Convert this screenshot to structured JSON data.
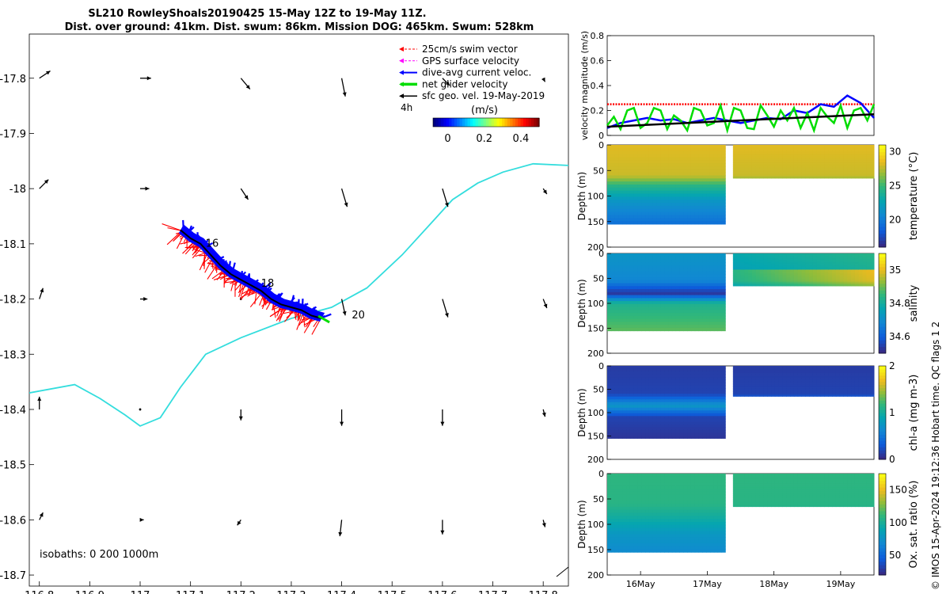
{
  "title": {
    "line1": "SL210 RowleyShoals20190425 15-May 12Z to 19-May 11Z.",
    "line2": "Dist. over ground: 41km. Dist. swum: 86km. Mission DOG: 465km. Swum: 528km"
  },
  "side_note": "© IMOS 15-Apr-2024 19:12:36 Hobart time. QC flags 1  2",
  "colors": {
    "swim": "#ff0000",
    "gps": "#ff00ff",
    "dac": "#0000ff",
    "net": "#00dd00",
    "sfc": "#000000",
    "isobath": "#33dddd",
    "track_fill_blue": "#0000ff",
    "track_fill_red": "#ff0000"
  },
  "chart_data": [
    {
      "id": "map",
      "type": "scatter",
      "title": "glider track map with surface geostrophic velocity",
      "xlim": [
        116.78,
        117.85
      ],
      "ylim": [
        -18.72,
        -17.72
      ],
      "xticks": [
        116.8,
        116.9,
        117,
        117.1,
        117.2,
        117.3,
        117.4,
        117.5,
        117.6,
        117.7,
        117.8
      ],
      "xtick_labels": [
        "116.8",
        "116.9",
        "117",
        "117.1",
        "117.2",
        "117.3",
        "117.4",
        "117.5",
        "117.6",
        "117.7",
        "117.8"
      ],
      "yticks": [
        -17.8,
        -17.9,
        -18.0,
        -18.1,
        -18.2,
        -18.3,
        -18.4,
        -18.5,
        -18.6,
        -18.7
      ],
      "ytick_labels": [
        "-17.8",
        "-17.9",
        "-18",
        "-18.1",
        "-18.2",
        "-18.3",
        "-18.4",
        "-18.5",
        "-18.6",
        "-18.7"
      ],
      "legend": {
        "placement": "top-right",
        "entries": [
          "25cm/s swim vector",
          "GPS surface velocity",
          "dive-avg current veloc.",
          "net glider velocity",
          "sfc geo. vel. 19-May-2019"
        ],
        "time_step": "4h",
        "colorbar_label": "(m/s)",
        "colorbar_ticks": [
          "0",
          "0.2",
          "0.4"
        ],
        "colorbar_range": [
          -0.08,
          0.5
        ]
      },
      "isobath_label": "isobaths: 0   200  1000m",
      "day_labels": [
        {
          "text": "16",
          "lon": 117.13,
          "lat": -18.105
        },
        {
          "text": "18",
          "lon": 117.24,
          "lat": -18.178
        },
        {
          "text": "20",
          "lon": 117.42,
          "lat": -18.235
        }
      ],
      "glider_track": [
        [
          117.08,
          -18.075
        ],
        [
          117.1,
          -18.09
        ],
        [
          117.12,
          -18.1
        ],
        [
          117.14,
          -18.12
        ],
        [
          117.16,
          -18.14
        ],
        [
          117.18,
          -18.155
        ],
        [
          117.2,
          -18.165
        ],
        [
          117.22,
          -18.175
        ],
        [
          117.24,
          -18.185
        ],
        [
          117.26,
          -18.2
        ],
        [
          117.28,
          -18.21
        ],
        [
          117.3,
          -18.215
        ],
        [
          117.32,
          -18.22
        ],
        [
          117.34,
          -18.23
        ],
        [
          117.36,
          -18.235
        ]
      ],
      "isobath_200m": [
        [
          116.78,
          -18.37
        ],
        [
          116.87,
          -18.355
        ],
        [
          116.92,
          -18.38
        ],
        [
          116.97,
          -18.41
        ],
        [
          117.0,
          -18.43
        ],
        [
          117.04,
          -18.415
        ],
        [
          117.08,
          -18.36
        ],
        [
          117.13,
          -18.3
        ],
        [
          117.2,
          -18.27
        ],
        [
          117.3,
          -18.235
        ],
        [
          117.38,
          -18.215
        ],
        [
          117.45,
          -18.18
        ],
        [
          117.52,
          -18.12
        ],
        [
          117.58,
          -18.06
        ],
        [
          117.62,
          -18.02
        ],
        [
          117.67,
          -17.99
        ],
        [
          117.72,
          -17.97
        ],
        [
          117.78,
          -17.955
        ],
        [
          117.85,
          -17.958
        ]
      ],
      "geo_velocity_arrows": [
        {
          "lon": 116.8,
          "lat": -17.8,
          "u": 0.06,
          "v": 0.04
        },
        {
          "lon": 117.0,
          "lat": -17.8,
          "u": 0.06,
          "v": 0.0
        },
        {
          "lon": 117.2,
          "lat": -17.8,
          "u": 0.05,
          "v": -0.06
        },
        {
          "lon": 117.4,
          "lat": -17.8,
          "u": 0.02,
          "v": -0.1
        },
        {
          "lon": 117.6,
          "lat": -17.8,
          "u": 0.04,
          "v": -0.04
        },
        {
          "lon": 117.8,
          "lat": -17.8,
          "u": 0.01,
          "v": -0.02
        },
        {
          "lon": 116.8,
          "lat": -18.0,
          "u": 0.05,
          "v": 0.05
        },
        {
          "lon": 117.0,
          "lat": -18.0,
          "u": 0.05,
          "v": 0.0
        },
        {
          "lon": 117.2,
          "lat": -18.0,
          "u": 0.04,
          "v": -0.06
        },
        {
          "lon": 117.4,
          "lat": -18.0,
          "u": 0.03,
          "v": -0.1
        },
        {
          "lon": 117.6,
          "lat": -18.0,
          "u": 0.03,
          "v": -0.1
        },
        {
          "lon": 117.8,
          "lat": -18.0,
          "u": 0.02,
          "v": -0.03
        },
        {
          "lon": 116.8,
          "lat": -18.2,
          "u": 0.02,
          "v": 0.06
        },
        {
          "lon": 117.0,
          "lat": -18.2,
          "u": 0.04,
          "v": 0.0
        },
        {
          "lon": 117.2,
          "lat": -18.2,
          "u": 0.0,
          "v": 0.0
        },
        {
          "lon": 117.4,
          "lat": -18.2,
          "u": 0.02,
          "v": -0.09
        },
        {
          "lon": 117.6,
          "lat": -18.2,
          "u": 0.03,
          "v": -0.1
        },
        {
          "lon": 117.8,
          "lat": -18.2,
          "u": 0.02,
          "v": -0.05
        },
        {
          "lon": 116.8,
          "lat": -18.4,
          "u": 0.0,
          "v": 0.07
        },
        {
          "lon": 117.0,
          "lat": -18.4,
          "u": 0.0,
          "v": 0.0
        },
        {
          "lon": 117.2,
          "lat": -18.4,
          "u": 0.0,
          "v": -0.06
        },
        {
          "lon": 117.4,
          "lat": -18.4,
          "u": 0.0,
          "v": -0.09
        },
        {
          "lon": 117.6,
          "lat": -18.4,
          "u": 0.0,
          "v": -0.09
        },
        {
          "lon": 117.8,
          "lat": -18.4,
          "u": 0.01,
          "v": -0.04
        },
        {
          "lon": 116.8,
          "lat": -18.6,
          "u": 0.02,
          "v": 0.04
        },
        {
          "lon": 117.0,
          "lat": -18.6,
          "u": 0.02,
          "v": 0.0
        },
        {
          "lon": 117.2,
          "lat": -18.6,
          "u": -0.02,
          "v": -0.03
        },
        {
          "lon": 117.4,
          "lat": -18.6,
          "u": -0.01,
          "v": -0.09
        },
        {
          "lon": 117.6,
          "lat": -18.6,
          "u": 0.0,
          "v": -0.08
        },
        {
          "lon": 117.8,
          "lat": -18.6,
          "u": 0.01,
          "v": -0.04
        }
      ]
    },
    {
      "id": "velocity",
      "type": "line",
      "ylabel": "velocity magnitude (m/s)",
      "ylim": [
        0,
        0.8
      ],
      "yticks": [
        "0",
        "0.2",
        "0.4",
        "0.6",
        "0.8"
      ],
      "xlim": [
        15.5,
        19.5
      ],
      "series": [
        {
          "name": "swim vector (25cm/s)",
          "color": "#ff0000",
          "x": [
            15.5,
            17.3,
            17.37,
            19.5
          ],
          "values": [
            0.25,
            0.25,
            0.25,
            0.25
          ]
        },
        {
          "name": "dive-avg current",
          "color": "#0000ff",
          "x": [
            15.5,
            15.7,
            15.9,
            16.1,
            16.3,
            16.5,
            16.7,
            16.9,
            17.1,
            17.3,
            17.5,
            17.7,
            17.9,
            18.1,
            18.3,
            18.5,
            18.7,
            18.9,
            19.1,
            19.3,
            19.5
          ],
          "values": [
            0.06,
            0.1,
            0.12,
            0.14,
            0.12,
            0.13,
            0.1,
            0.12,
            0.14,
            0.12,
            0.1,
            0.12,
            0.14,
            0.13,
            0.2,
            0.18,
            0.25,
            0.23,
            0.32,
            0.26,
            0.14
          ]
        },
        {
          "name": "net glider velocity",
          "color": "#00dd00",
          "x": [
            15.5,
            15.6,
            15.7,
            15.8,
            15.9,
            16.0,
            16.1,
            16.2,
            16.3,
            16.4,
            16.5,
            16.6,
            16.7,
            16.8,
            16.9,
            17.0,
            17.1,
            17.2,
            17.3,
            17.4,
            17.5,
            17.6,
            17.7,
            17.8,
            17.9,
            18.0,
            18.1,
            18.2,
            18.3,
            18.4,
            18.5,
            18.6,
            18.7,
            18.8,
            18.9,
            19.0,
            19.1,
            19.2,
            19.3,
            19.4,
            19.5
          ],
          "values": [
            0.08,
            0.15,
            0.05,
            0.2,
            0.22,
            0.06,
            0.1,
            0.22,
            0.2,
            0.05,
            0.16,
            0.12,
            0.04,
            0.22,
            0.2,
            0.08,
            0.1,
            0.24,
            0.04,
            0.22,
            0.2,
            0.06,
            0.05,
            0.24,
            0.16,
            0.07,
            0.2,
            0.12,
            0.22,
            0.06,
            0.18,
            0.04,
            0.22,
            0.15,
            0.1,
            0.24,
            0.06,
            0.2,
            0.22,
            0.12,
            0.25
          ]
        },
        {
          "name": "sfc geo. velocity",
          "color": "#000000",
          "x": [
            15.5,
            19.5
          ],
          "values": [
            0.07,
            0.17
          ]
        }
      ]
    },
    {
      "id": "temperature",
      "type": "heatmap",
      "ylabel": "Depth (m)",
      "ylim": [
        0,
        200
      ],
      "yticks": [
        "0",
        "50",
        "100",
        "150",
        "200"
      ],
      "colorbar_label": "temperature (°C)",
      "colorbar_ticks": [
        "20",
        "25",
        "30"
      ],
      "colorbar_range": [
        16,
        31
      ],
      "profile": [
        {
          "depth": 0,
          "value": 28.5
        },
        {
          "depth": 60,
          "value": 28.0
        },
        {
          "depth": 80,
          "value": 24.5
        },
        {
          "depth": 110,
          "value": 21.5
        },
        {
          "depth": 160,
          "value": 19.0
        }
      ],
      "deep_segment_max_depth": 155,
      "shallow_segment_max_depth": 65
    },
    {
      "id": "salinity",
      "type": "heatmap",
      "ylabel": "Depth (m)",
      "ylim": [
        0,
        200
      ],
      "yticks": [
        "0",
        "50",
        "100",
        "150",
        "200"
      ],
      "colorbar_label": "salinity",
      "colorbar_ticks": [
        "34.6",
        "34.8",
        "35"
      ],
      "colorbar_range": [
        34.5,
        35.1
      ],
      "profile": [
        {
          "depth": 0,
          "value": 34.72
        },
        {
          "depth": 55,
          "value": 34.68
        },
        {
          "depth": 80,
          "value": 34.52
        },
        {
          "depth": 100,
          "value": 34.82
        },
        {
          "depth": 160,
          "value": 34.9
        }
      ],
      "deep_segment_max_depth": 155,
      "shallow_segment_max_depth": 65
    },
    {
      "id": "chla",
      "type": "heatmap",
      "ylabel": "Depth (m)",
      "ylim": [
        0,
        200
      ],
      "yticks": [
        "0",
        "50",
        "100",
        "150",
        "200"
      ],
      "colorbar_label": "chl-a (mg m-3)",
      "colorbar_ticks": [
        "0",
        "1",
        "2"
      ],
      "colorbar_range": [
        0,
        2
      ],
      "profile": [
        {
          "depth": 0,
          "value": 0.1
        },
        {
          "depth": 60,
          "value": 0.15
        },
        {
          "depth": 85,
          "value": 0.75
        },
        {
          "depth": 110,
          "value": 0.15
        },
        {
          "depth": 160,
          "value": 0.05
        }
      ],
      "deep_segment_max_depth": 155,
      "shallow_segment_max_depth": 65
    },
    {
      "id": "oxygen",
      "type": "heatmap",
      "ylabel": "Depth (m)",
      "ylim": [
        0,
        200
      ],
      "yticks": [
        "0",
        "50",
        "100",
        "150",
        "200"
      ],
      "colorbar_label": "Ox. sat. ratio (%)",
      "colorbar_ticks": [
        "50",
        "100",
        "150"
      ],
      "colorbar_range": [
        20,
        175
      ],
      "profile": [
        {
          "depth": 0,
          "value": 110
        },
        {
          "depth": 60,
          "value": 108
        },
        {
          "depth": 90,
          "value": 95
        },
        {
          "depth": 120,
          "value": 78
        },
        {
          "depth": 160,
          "value": 68
        }
      ],
      "deep_segment_max_depth": 155,
      "shallow_segment_max_depth": 65
    }
  ],
  "time_axis": {
    "xlim": [
      15.5,
      19.5
    ],
    "tick_labels": [
      "16May",
      "17May",
      "18May",
      "19May"
    ],
    "tick_positions": [
      16,
      17,
      18,
      19
    ],
    "gap": [
      17.28,
      17.37
    ]
  }
}
